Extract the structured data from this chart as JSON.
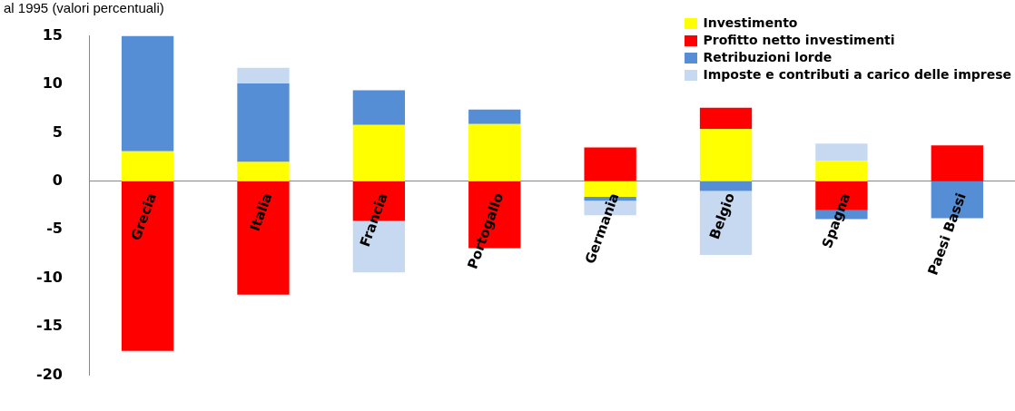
{
  "chart_data": {
    "type": "bar",
    "title": "al 1995  (valori percentuali)",
    "stacked": true,
    "categories": [
      "Grecia",
      "Italia",
      "Francia",
      "Portogallo",
      "Germania",
      "Belgio",
      "Spagna",
      "Paesi Bassi"
    ],
    "series": [
      {
        "name": "Investimento",
        "color": "#ffff00",
        "values": [
          3.1,
          2.0,
          5.8,
          5.9,
          -1.6,
          5.4,
          2.1,
          null
        ]
      },
      {
        "name": "Profitto netto investimenti",
        "color": "#ff0000",
        "values": [
          -17.5,
          -11.7,
          -4.1,
          -6.9,
          3.5,
          2.2,
          -3.0,
          3.7
        ]
      },
      {
        "name": "Retribuzioni lorde",
        "color": "#558ed5",
        "values": [
          11.9,
          8.1,
          3.6,
          1.5,
          -0.4,
          -1.0,
          -0.9,
          -3.8
        ]
      },
      {
        "name": "Imposte e contributi a carico delle imprese",
        "color": "#c6d9f1",
        "values": [
          null,
          1.6,
          -5.3,
          null,
          -1.5,
          -6.6,
          1.8,
          null
        ]
      }
    ],
    "ylim": [
      -20,
      15
    ],
    "yticks": [
      -20,
      -15,
      -10,
      -5,
      0,
      5,
      10,
      15
    ],
    "grid": false,
    "legend": "top right"
  }
}
